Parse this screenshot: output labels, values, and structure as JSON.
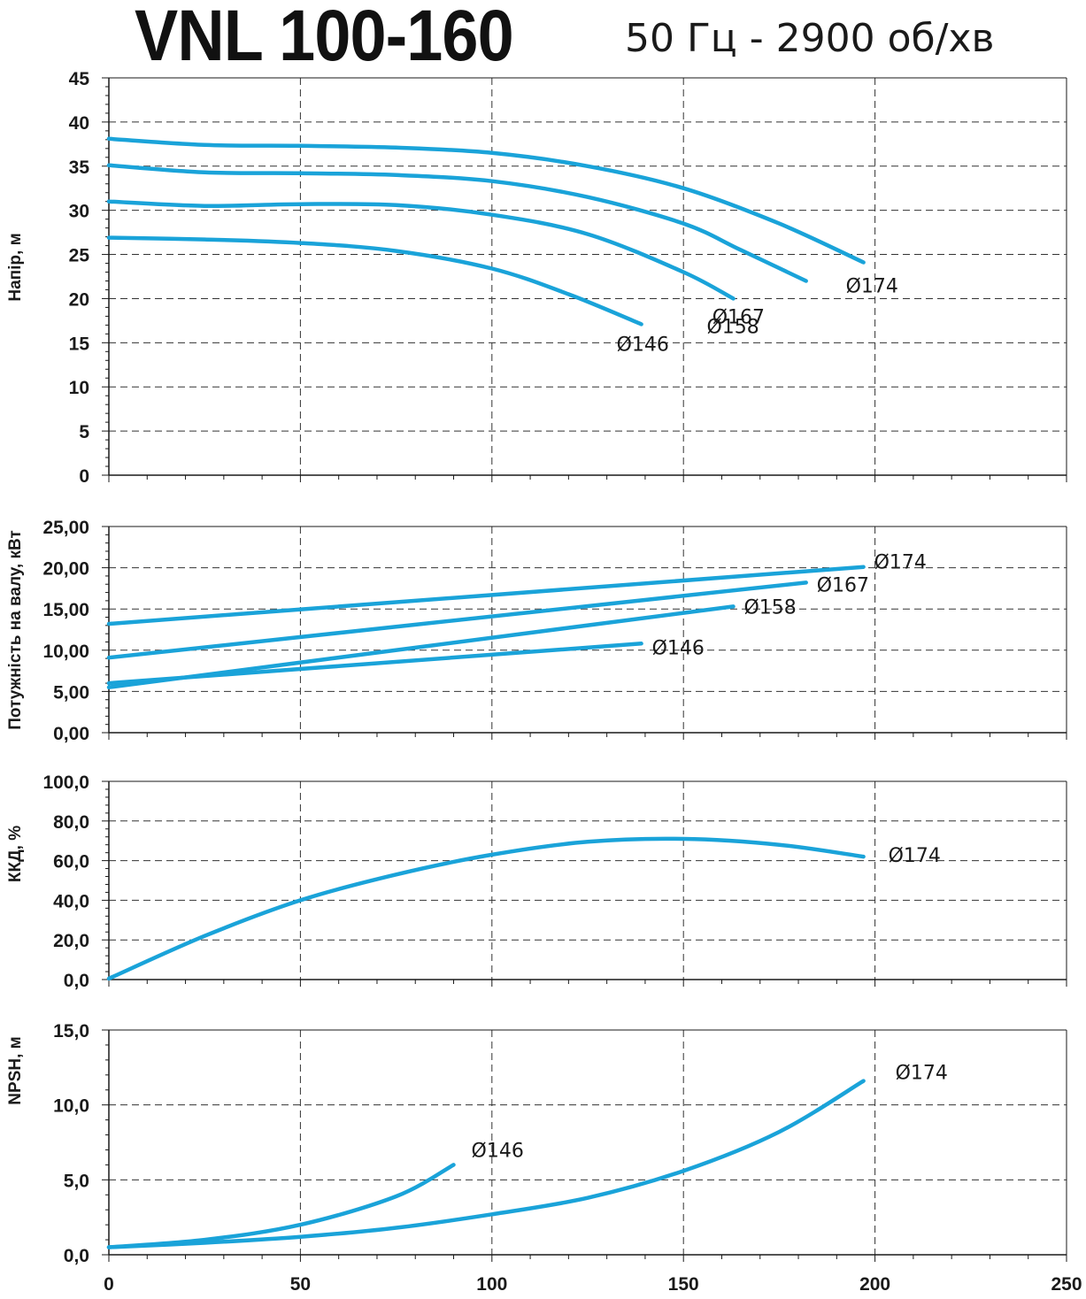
{
  "title": {
    "model": "VNL 100-160",
    "subtitle": "50 Гц - 2900 об/хв"
  },
  "colors": {
    "curve": "#1aa3d9",
    "grid": "#333333",
    "axis": "#1a1a1a"
  },
  "chart_data": [
    {
      "type": "line",
      "ylabel": "Напір, м",
      "xlim": [
        0,
        250
      ],
      "ylim": [
        0,
        45
      ],
      "x_ticks": [
        "0",
        "50",
        "100",
        "150",
        "200",
        "250"
      ],
      "y_ticks": [
        "0",
        "5",
        "10",
        "15",
        "20",
        "25",
        "30",
        "35",
        "40",
        "45"
      ],
      "grid": true,
      "series": [
        {
          "name": "Ø174",
          "x": [
            0,
            25,
            50,
            75,
            100,
            125,
            150,
            175,
            197
          ],
          "y": [
            38.1,
            37.4,
            37.3,
            37.1,
            36.5,
            35.0,
            32.5,
            28.5,
            24.1
          ]
        },
        {
          "name": "Ø167",
          "x": [
            0,
            25,
            50,
            75,
            100,
            125,
            150,
            165,
            182
          ],
          "y": [
            35.1,
            34.3,
            34.2,
            34.0,
            33.3,
            31.5,
            28.5,
            25.5,
            22.0
          ]
        },
        {
          "name": "Ø158",
          "x": [
            0,
            25,
            50,
            75,
            100,
            125,
            150,
            163
          ],
          "y": [
            31.0,
            30.5,
            30.7,
            30.6,
            29.5,
            27.3,
            23.0,
            20.0
          ]
        },
        {
          "name": "Ø146",
          "x": [
            0,
            25,
            50,
            75,
            100,
            120,
            139
          ],
          "y": [
            26.9,
            26.7,
            26.3,
            25.4,
            23.4,
            20.5,
            17.1
          ]
        }
      ]
    },
    {
      "type": "line",
      "ylabel": "Потужність на валу, кВт",
      "xlim": [
        0,
        250
      ],
      "ylim": [
        0,
        25
      ],
      "x_ticks": [],
      "y_ticks": [
        "0,00",
        "5,00",
        "10,00",
        "15,00",
        "20,00",
        "25,00"
      ],
      "grid": true,
      "series": [
        {
          "name": "Ø174",
          "x": [
            0,
            197
          ],
          "y": [
            13.2,
            20.1
          ]
        },
        {
          "name": "Ø167",
          "x": [
            0,
            182
          ],
          "y": [
            9.1,
            18.2
          ]
        },
        {
          "name": "Ø158",
          "x": [
            0,
            163
          ],
          "y": [
            5.5,
            15.3
          ]
        },
        {
          "name": "Ø146",
          "x": [
            0,
            139
          ],
          "y": [
            6.0,
            10.8
          ]
        }
      ]
    },
    {
      "type": "line",
      "ylabel": "ККД, %",
      "xlim": [
        0,
        250
      ],
      "ylim": [
        0,
        100
      ],
      "x_ticks": [],
      "y_ticks": [
        "0,0",
        "20,0",
        "40,0",
        "60,0",
        "80,0",
        "100,0"
      ],
      "grid": true,
      "series": [
        {
          "name": "Ø174",
          "x": [
            0,
            25,
            50,
            75,
            100,
            125,
            150,
            175,
            197
          ],
          "y": [
            0.5,
            22,
            40,
            53,
            63,
            69.5,
            71,
            68,
            62
          ]
        }
      ]
    },
    {
      "type": "line",
      "ylabel": "NPSH, м",
      "xlabel": "",
      "xlim": [
        0,
        250
      ],
      "ylim": [
        0,
        15
      ],
      "x_ticks": [
        "0",
        "50",
        "100",
        "150",
        "200",
        "250"
      ],
      "y_ticks": [
        "0,0",
        "5,0",
        "10,0",
        "15,0"
      ],
      "grid": true,
      "series": [
        {
          "name": "Ø174",
          "x": [
            0,
            25,
            50,
            75,
            100,
            125,
            150,
            175,
            197
          ],
          "y": [
            0.5,
            0.8,
            1.2,
            1.8,
            2.7,
            3.8,
            5.6,
            8.2,
            11.6
          ]
        },
        {
          "name": "Ø146",
          "x": [
            0,
            25,
            50,
            75,
            90
          ],
          "y": [
            0.5,
            1.0,
            2.0,
            3.9,
            6.0
          ]
        }
      ]
    }
  ]
}
